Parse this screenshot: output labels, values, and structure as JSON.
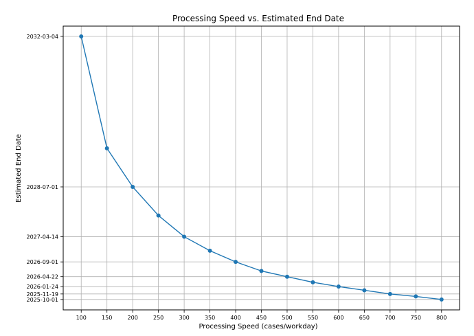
{
  "chart_data": {
    "type": "line",
    "title": "Processing Speed vs. Estimated End Date",
    "xlabel": "Processing Speed (cases/workday)",
    "ylabel": "Estimated End Date",
    "grid": true,
    "legend": "none",
    "x": [
      100,
      150,
      200,
      250,
      300,
      350,
      400,
      450,
      500,
      550,
      600,
      650,
      700,
      750,
      800
    ],
    "series": [
      {
        "name": "Estimated End Date",
        "color": "#1f77b4",
        "values": [
          "2032-03-04",
          "2029-06-10",
          "2028-07-01",
          "2027-10-20",
          "2027-04-14",
          "2026-12-10",
          "2026-09-01",
          "2026-06-12",
          "2026-04-22",
          "2026-03-03",
          "2026-01-24",
          "2025-12-22",
          "2025-11-19",
          "2025-10-28",
          "2025-10-01"
        ]
      }
    ],
    "x_ticks": [
      "100",
      "150",
      "200",
      "250",
      "300",
      "350",
      "400",
      "450",
      "500",
      "550",
      "600",
      "650",
      "700",
      "750",
      "800"
    ],
    "y_ticks": [
      "2025-10-01",
      "2025-11-19",
      "2026-01-24",
      "2026-04-22",
      "2026-09-01",
      "2027-04-14",
      "2028-07-01",
      "2032-03-04"
    ],
    "xlim": [
      65,
      835
    ],
    "ylim": [
      "2025-06-30",
      "2032-06-04"
    ]
  }
}
